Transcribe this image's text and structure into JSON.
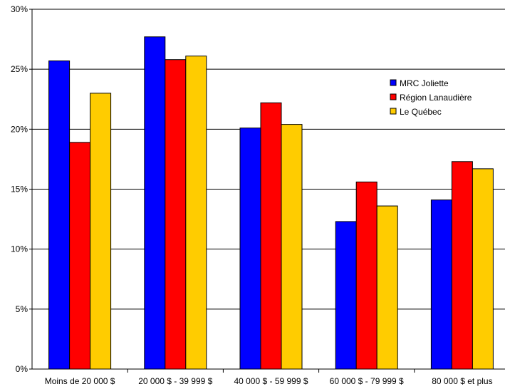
{
  "chart_data": {
    "type": "bar",
    "title": "",
    "xlabel": "",
    "ylabel": "",
    "categories": [
      "Moins de 20 000 $",
      "20 000 $ - 39 999 $",
      "40 000 $ - 59 999 $",
      "60 000 $ - 79 999 $",
      "80 000 $ et plus"
    ],
    "series": [
      {
        "name": "MRC Joliette",
        "color": "#0000FF",
        "values": [
          25.7,
          27.7,
          20.1,
          12.3,
          14.1
        ]
      },
      {
        "name": "Région Lanaudière",
        "color": "#FF0000",
        "values": [
          18.9,
          25.8,
          22.2,
          15.6,
          17.3
        ]
      },
      {
        "name": "Le Québec",
        "color": "#FFCC00",
        "values": [
          23.0,
          26.1,
          20.4,
          13.6,
          16.7
        ]
      }
    ],
    "ylim": [
      0,
      30
    ],
    "yticks": [
      0,
      5,
      10,
      15,
      20,
      25,
      30
    ],
    "ytick_labels": [
      "0%",
      "5%",
      "10%",
      "15%",
      "20%",
      "25%",
      "30%"
    ],
    "grid": true,
    "legend_position": "upper-right"
  }
}
